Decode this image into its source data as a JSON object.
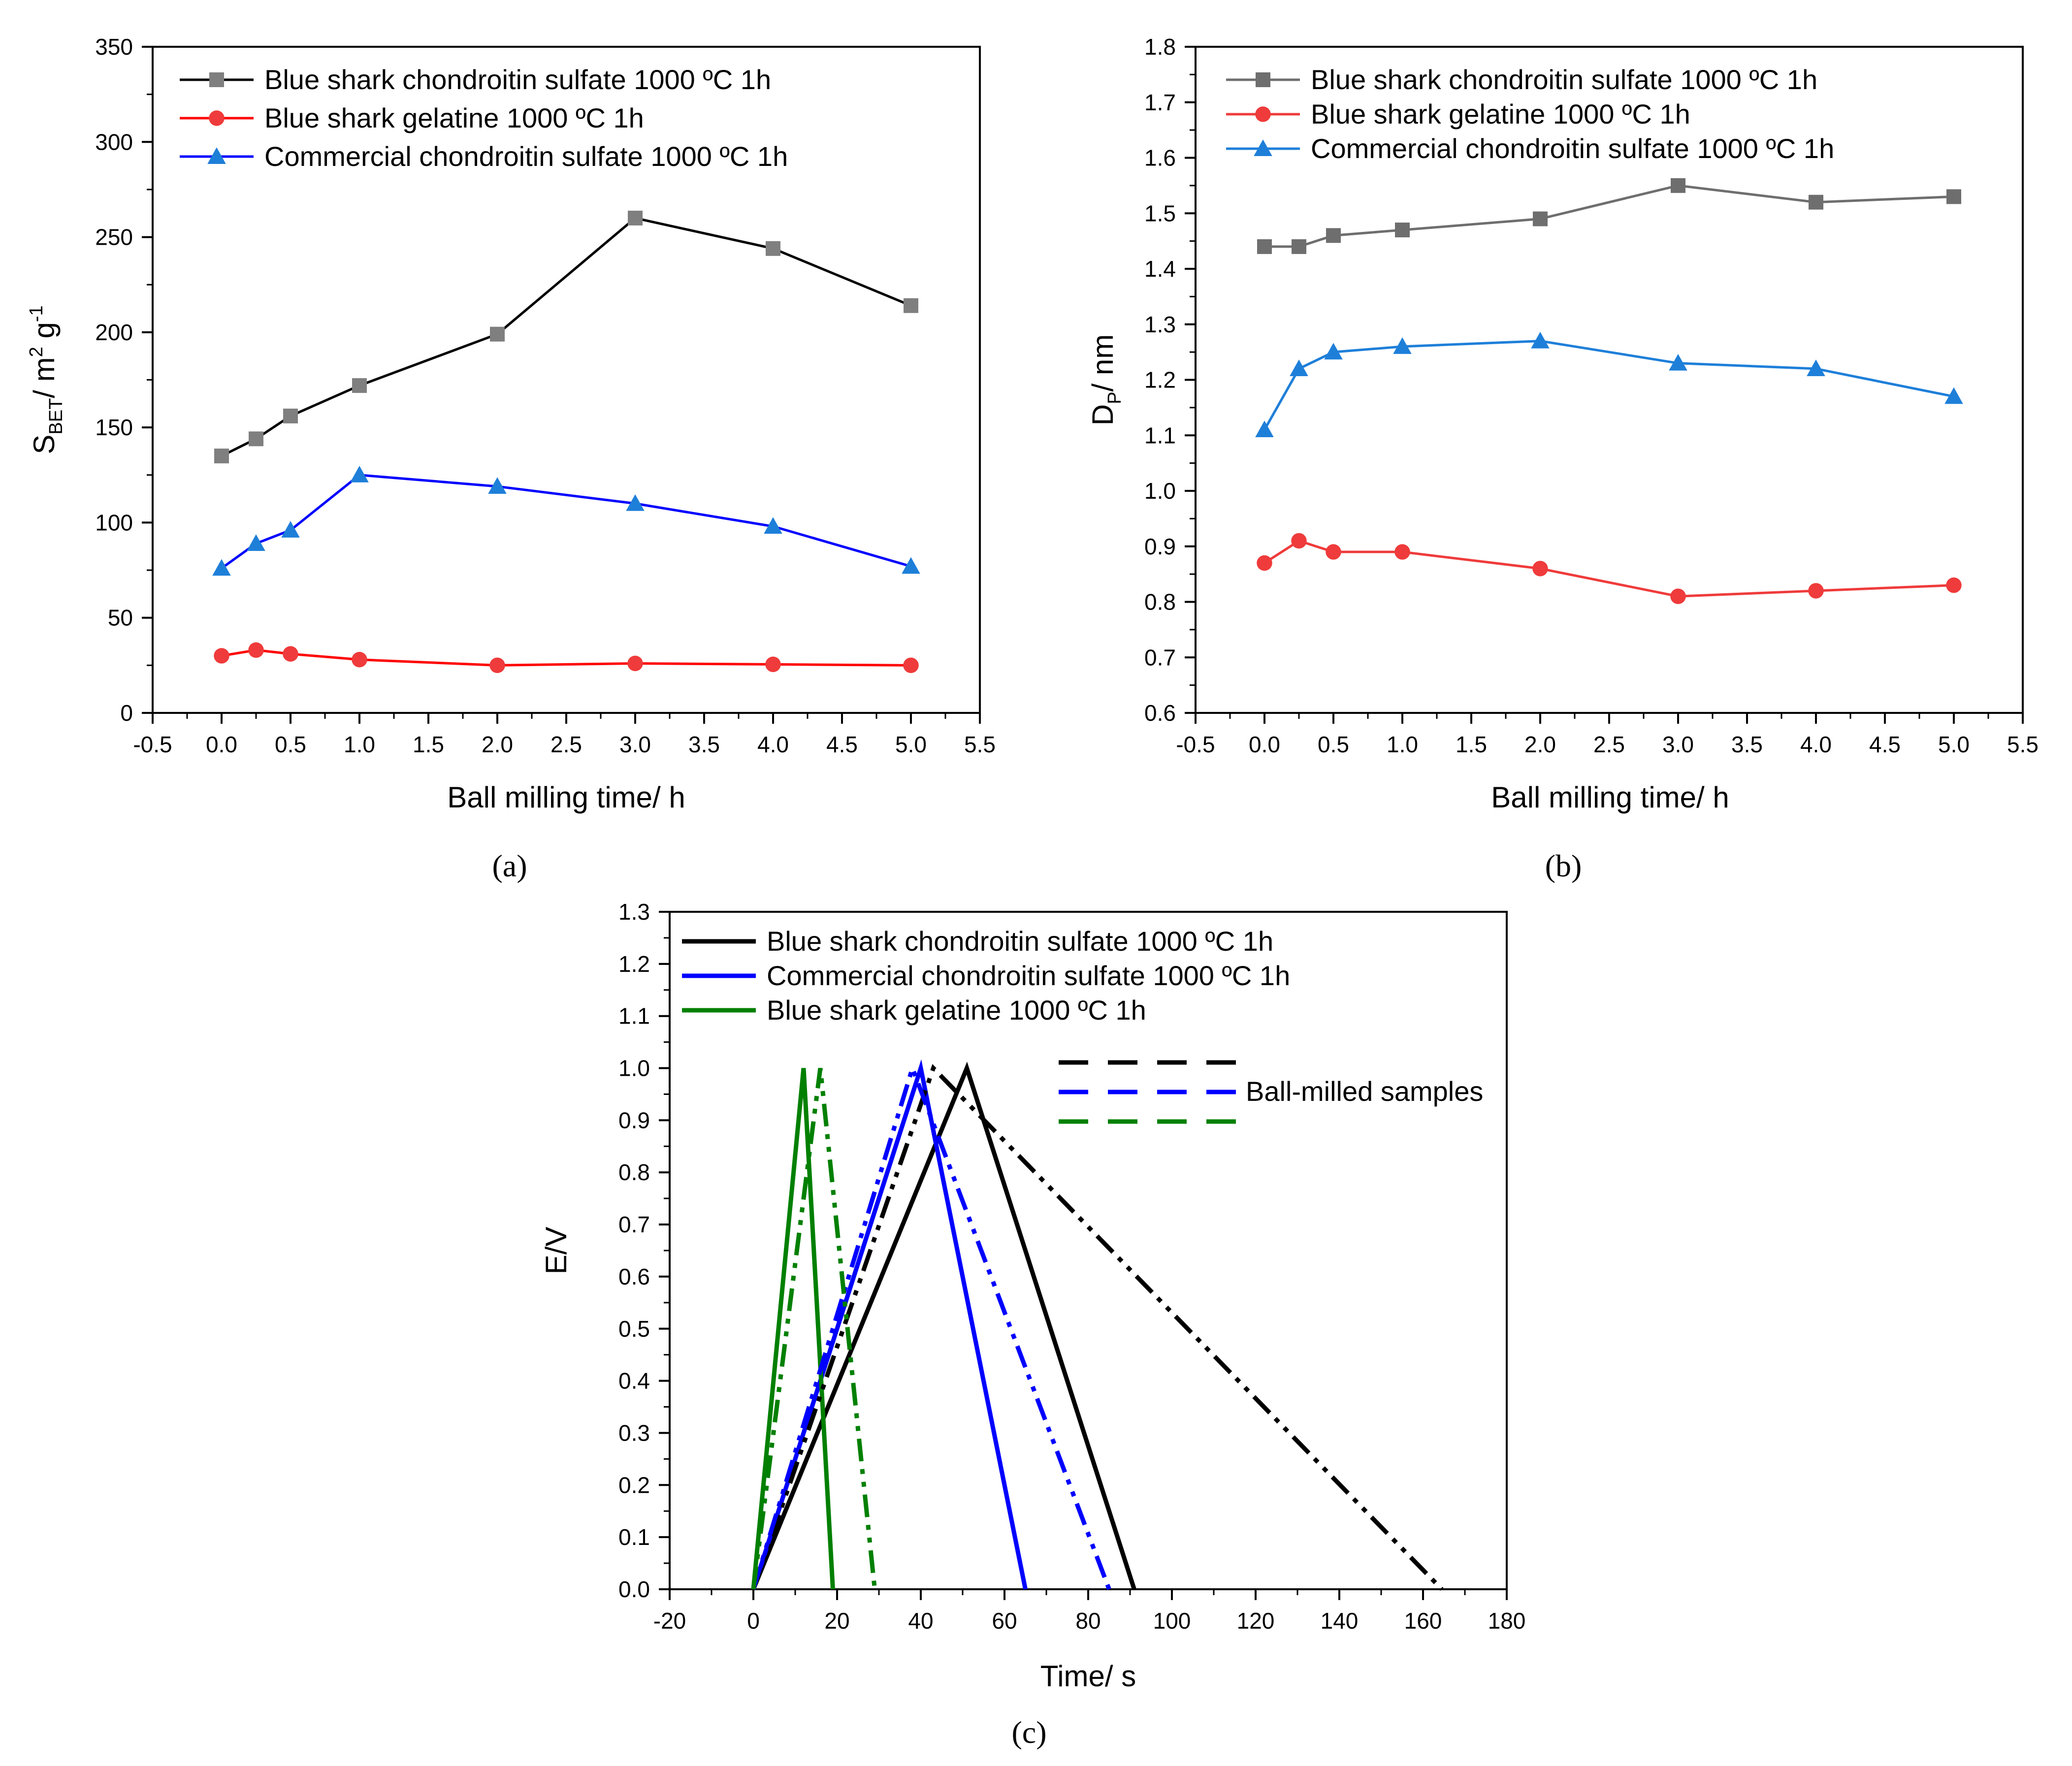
{
  "chart_data": [
    {
      "id": "a",
      "type": "line",
      "caption": "(a)",
      "xlabel": "Ball milling time/ h",
      "ylabel_main": "S",
      "ylabel_sub": "BET",
      "ylabel_rest": "/ m",
      "ylabel_sup1": "2",
      "ylabel_rest2": " g",
      "ylabel_sup2": "-1",
      "xlim": [
        -0.5,
        5.5
      ],
      "ylim": [
        0,
        350
      ],
      "xticks": [
        "-0.5",
        "0.0",
        "0.5",
        "1.0",
        "1.5",
        "2.0",
        "2.5",
        "3.0",
        "3.5",
        "4.0",
        "4.5",
        "5.0",
        "5.5"
      ],
      "yticks": [
        "0",
        "50",
        "100",
        "150",
        "200",
        "250",
        "300",
        "350"
      ],
      "legend_position": "top-left",
      "series": [
        {
          "name": "Blue shark chondroitin sulfate 1000 ºC 1h",
          "color": "#000000",
          "marker_color": "#7f7f7f",
          "marker": "square",
          "x": [
            0,
            0.25,
            0.5,
            1,
            2,
            3,
            4,
            5
          ],
          "y": [
            135,
            144,
            156,
            172,
            199,
            260,
            244,
            214
          ]
        },
        {
          "name": "Blue shark gelatine 1000 ºC 1h",
          "color": "#ff0000",
          "marker_color": "#ef3b3b",
          "marker": "circle",
          "x": [
            0,
            0.25,
            0.5,
            1,
            2,
            3,
            4,
            5
          ],
          "y": [
            30,
            33,
            31,
            28,
            25,
            26,
            25.5,
            25
          ]
        },
        {
          "name": "Commercial chondroitin sulfate 1000 ºC 1h",
          "color": "#0000ff",
          "marker_color": "#1e7fd9",
          "marker": "triangle",
          "x": [
            0,
            0.25,
            0.5,
            1,
            2,
            3,
            4,
            5
          ],
          "y": [
            76,
            89,
            96,
            125,
            119,
            110,
            98,
            77
          ]
        }
      ]
    },
    {
      "id": "b",
      "type": "line",
      "caption": "(b)",
      "xlabel": "Ball milling time/ h",
      "ylabel_main": "D",
      "ylabel_sub": "P",
      "ylabel_rest": "/ nm",
      "xlim": [
        -0.5,
        5.5
      ],
      "ylim": [
        0.6,
        1.8
      ],
      "xticks": [
        "-0.5",
        "0.0",
        "0.5",
        "1.0",
        "1.5",
        "2.0",
        "2.5",
        "3.0",
        "3.5",
        "4.0",
        "4.5",
        "5.0",
        "5.5"
      ],
      "yticks": [
        "0.6",
        "0.7",
        "0.8",
        "0.9",
        "1.0",
        "1.1",
        "1.2",
        "1.3",
        "1.4",
        "1.5",
        "1.6",
        "1.7",
        "1.8"
      ],
      "legend_position": "top-left",
      "series": [
        {
          "name": "Blue shark chondroitin sulfate 1000 ºC 1h",
          "color": "#6e6e6e",
          "marker_color": "#6e6e6e",
          "marker": "square",
          "x": [
            0,
            0.25,
            0.5,
            1,
            2,
            3,
            4,
            5
          ],
          "y": [
            1.44,
            1.44,
            1.46,
            1.47,
            1.49,
            1.55,
            1.52,
            1.53
          ]
        },
        {
          "name": "Blue shark gelatine 1000 ºC 1h",
          "color": "#ef3b3b",
          "marker_color": "#ef3b3b",
          "marker": "circle",
          "x": [
            0,
            0.25,
            0.5,
            1,
            2,
            3,
            4,
            5
          ],
          "y": [
            0.87,
            0.91,
            0.89,
            0.89,
            0.86,
            0.81,
            0.82,
            0.83
          ]
        },
        {
          "name": "Commercial chondroitin sulfate 1000 ºC 1h",
          "color": "#1e7fd9",
          "marker_color": "#1e7fd9",
          "marker": "triangle",
          "x": [
            0,
            0.25,
            0.5,
            1,
            2,
            3,
            4,
            5
          ],
          "y": [
            1.11,
            1.22,
            1.25,
            1.26,
            1.27,
            1.23,
            1.22,
            1.17
          ]
        }
      ]
    },
    {
      "id": "c",
      "type": "line",
      "caption": "(c)",
      "xlabel": "Time/ s",
      "ylabel": "E/V",
      "xlim": [
        -20,
        180
      ],
      "ylim": [
        0,
        1.3
      ],
      "xticks": [
        "-20",
        "0",
        "20",
        "40",
        "60",
        "80",
        "100",
        "120",
        "140",
        "160",
        "180"
      ],
      "yticks": [
        "0.0",
        "0.1",
        "0.2",
        "0.3",
        "0.4",
        "0.5",
        "0.6",
        "0.7",
        "0.8",
        "0.9",
        "1.0",
        "1.1",
        "1.2",
        "1.3"
      ],
      "legend_position": "top-left",
      "legend_extra": "Ball-milled samples",
      "series": [
        {
          "name": "Blue shark chondroitin sulfate 1000 ºC 1h",
          "color": "#000000",
          "style": "solid",
          "x": [
            0,
            51,
            91
          ],
          "y": [
            0,
            1.0,
            0
          ]
        },
        {
          "name": "Commercial chondroitin sulfate 1000 ºC 1h",
          "color": "#0000ff",
          "style": "solid",
          "x": [
            0,
            40,
            65
          ],
          "y": [
            0,
            1.0,
            0
          ]
        },
        {
          "name": "Blue shark gelatine 1000 ºC 1h",
          "color": "#008000",
          "style": "solid",
          "x": [
            0,
            12,
            19
          ],
          "y": [
            0,
            1.0,
            0
          ]
        },
        {
          "color": "#000000",
          "style": "dashdot",
          "x": [
            0,
            43,
            164.5
          ],
          "y": [
            0,
            1.0,
            0
          ]
        },
        {
          "color": "#0000ff",
          "style": "dashdot",
          "x": [
            0,
            38,
            85
          ],
          "y": [
            0,
            1.0,
            0
          ]
        },
        {
          "color": "#008000",
          "style": "dashdot",
          "x": [
            0,
            16,
            29
          ],
          "y": [
            0,
            1.0,
            0
          ]
        }
      ]
    }
  ]
}
